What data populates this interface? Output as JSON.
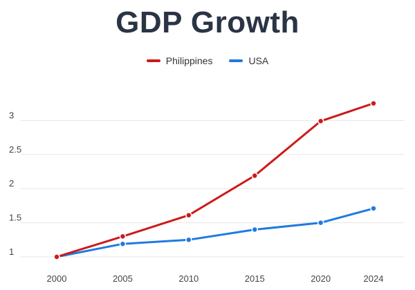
{
  "chart_data": {
    "type": "line",
    "title": "GDP Growth",
    "xlabel": "",
    "ylabel": "",
    "x": [
      "2000",
      "2005",
      "2010",
      "2015",
      "2020",
      "2024"
    ],
    "series": [
      {
        "name": "Philippines",
        "color": "#cc1a1a",
        "values": [
          1.0,
          1.3,
          1.61,
          2.19,
          2.99,
          3.25
        ]
      },
      {
        "name": "USA",
        "color": "#1f7ae0",
        "values": [
          1.0,
          1.19,
          1.25,
          1.4,
          1.5,
          1.71
        ]
      }
    ],
    "ylim": [
      1,
      3.5
    ],
    "yticks": [
      "1",
      "1.5",
      "2",
      "2.5",
      "3"
    ],
    "grid": true,
    "legend_position": "top-center"
  }
}
